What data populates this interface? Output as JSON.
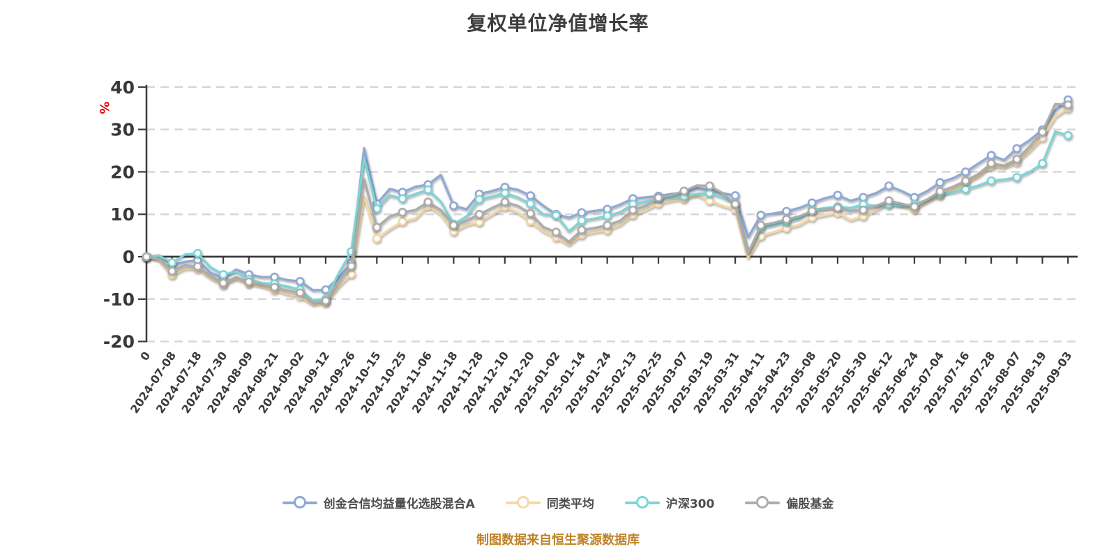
{
  "title": "复权单位净值增长率",
  "y_axis_unit_label": "%",
  "footer": "制图数据来自恒生聚源数据库",
  "colors": {
    "fund": "#8fa9d6",
    "peer_avg": "#f6d9a3",
    "csi300": "#7cd6d7",
    "equity_funds": "#acacac",
    "axis": "#3b3b3b",
    "grid": "#d7d7d7",
    "title_text": "#3d3d3d",
    "footer_text": "#be8326",
    "unit_label_red": "#e60000"
  },
  "chart_data": {
    "type": "line",
    "title": "复权单位净值增长率",
    "ylabel": "%",
    "ylim": [
      -20,
      40
    ],
    "y_ticks": [
      40,
      30,
      20,
      10,
      0,
      -10,
      -20
    ],
    "grid": "horizontal dashed",
    "legend_position": "bottom",
    "x_index_step": 0.5,
    "markers_every": 2,
    "x_tick_labels": [
      "0",
      "2024-07-08",
      "2024-07-18",
      "2024-07-30",
      "2024-08-09",
      "2024-08-21",
      "2024-09-02",
      "2024-09-12",
      "2024-09-26",
      "2024-10-15",
      "2024-10-25",
      "2024-11-06",
      "2024-11-18",
      "2024-11-28",
      "2024-12-10",
      "2024-12-20",
      "2025-01-02",
      "2025-01-14",
      "2025-01-24",
      "2025-02-13",
      "2025-02-25",
      "2025-03-07",
      "2025-03-19",
      "2025-03-31",
      "2025-04-11",
      "2025-04-23",
      "2025-05-08",
      "2025-05-20",
      "2025-05-30",
      "2025-06-12",
      "2025-06-24",
      "2025-07-04",
      "2025-07-16",
      "2025-07-28",
      "2025-08-07",
      "2025-08-19",
      "2025-09-03"
    ],
    "series": [
      {
        "name": "创金合信均益量化选股混合A",
        "color": "#8fa9d6",
        "values": [
          0,
          0.3,
          -2,
          -1.2,
          -0.8,
          -3.8,
          -5,
          -3,
          -4.2,
          -4.8,
          -4.8,
          -5.5,
          -5.8,
          -7.9,
          -7.8,
          -5,
          -1.5,
          25.6,
          12.5,
          16,
          15.2,
          16.5,
          17,
          19.3,
          12,
          11.2,
          14.8,
          15.5,
          16.4,
          15.8,
          14.4,
          12,
          10,
          9.2,
          10.4,
          10.8,
          11.2,
          12.3,
          13.7,
          14,
          14.3,
          14.8,
          15.1,
          16.2,
          15.6,
          15,
          14.4,
          4.6,
          9.8,
          10.2,
          10.7,
          11.5,
          12.7,
          13.8,
          14.5,
          13.2,
          14,
          15,
          16.7,
          15.5,
          14,
          15.5,
          17.5,
          18.5,
          20,
          22,
          23.9,
          22.8,
          25.5,
          27.5,
          29.9,
          34.5,
          37
        ]
      },
      {
        "name": "同类平均",
        "color": "#f6d9a3",
        "values": [
          0,
          -0.8,
          -4.3,
          -2.8,
          -2.8,
          -5,
          -6.6,
          -5.2,
          -6.3,
          -7,
          -7.8,
          -8.8,
          -9.3,
          -11.3,
          -10.8,
          -7,
          -4.1,
          14.2,
          4.3,
          6.5,
          8.3,
          9,
          12,
          10,
          6,
          7.5,
          8.2,
          10,
          11.8,
          10.5,
          8.4,
          6,
          4.6,
          2.8,
          5.2,
          5.8,
          6.3,
          7.5,
          9.9,
          11,
          12.6,
          13.2,
          13.7,
          14.5,
          13.2,
          12,
          11.2,
          -0.3,
          4.9,
          5.8,
          6.8,
          7.5,
          9.3,
          9.8,
          10.4,
          8.6,
          9.6,
          11,
          12.6,
          12,
          11.2,
          13,
          14.5,
          15.8,
          17.3,
          19,
          21.4,
          21,
          22.3,
          25,
          28.1,
          33,
          35
        ]
      },
      {
        "name": "沪深300",
        "color": "#7cd6d7",
        "values": [
          0,
          0.2,
          -1.4,
          0.5,
          0.8,
          -2.5,
          -4.2,
          -3.5,
          -5.3,
          -6.2,
          -6.4,
          -7,
          -7.8,
          -10.3,
          -10,
          -4,
          1.2,
          23.3,
          11.3,
          14.5,
          13.7,
          14.8,
          15.8,
          13,
          7.7,
          9.5,
          13.5,
          14.2,
          15,
          14,
          12.5,
          10,
          9.8,
          6,
          8.5,
          9,
          9.6,
          10.5,
          12.4,
          13,
          13.7,
          14,
          14.3,
          14.8,
          15,
          14,
          12.6,
          1,
          6.8,
          7.5,
          8.2,
          9,
          11,
          11.5,
          11.8,
          11.5,
          12.3,
          12,
          12.3,
          12,
          12.3,
          13.5,
          14.8,
          15.2,
          15.9,
          16.8,
          17.9,
          18.2,
          18.7,
          20,
          22,
          29.5,
          28.6
        ]
      },
      {
        "name": "偏股基金",
        "color": "#acacac",
        "values": [
          0,
          -0.5,
          -3.4,
          -2,
          -2.3,
          -4.5,
          -6.2,
          -4.8,
          -5.9,
          -6.5,
          -7.2,
          -8,
          -8.5,
          -10.8,
          -10.4,
          -6,
          -2.2,
          18.3,
          6.9,
          9.5,
          10.5,
          11,
          12.9,
          11,
          7.4,
          8.5,
          10,
          11.5,
          12.9,
          12,
          10.2,
          7,
          5.8,
          3.5,
          6.3,
          6.8,
          7.4,
          8.5,
          11,
          12,
          13.9,
          14.5,
          15.5,
          16.8,
          16.7,
          15,
          12.4,
          0.8,
          7.4,
          8,
          8.8,
          9.5,
          10.8,
          11.2,
          11.5,
          10.8,
          11,
          12,
          13.2,
          12.5,
          11.8,
          13.5,
          15.4,
          16.5,
          17.9,
          19.5,
          22,
          21.5,
          23,
          26,
          29.4,
          36,
          35.8
        ]
      }
    ]
  }
}
